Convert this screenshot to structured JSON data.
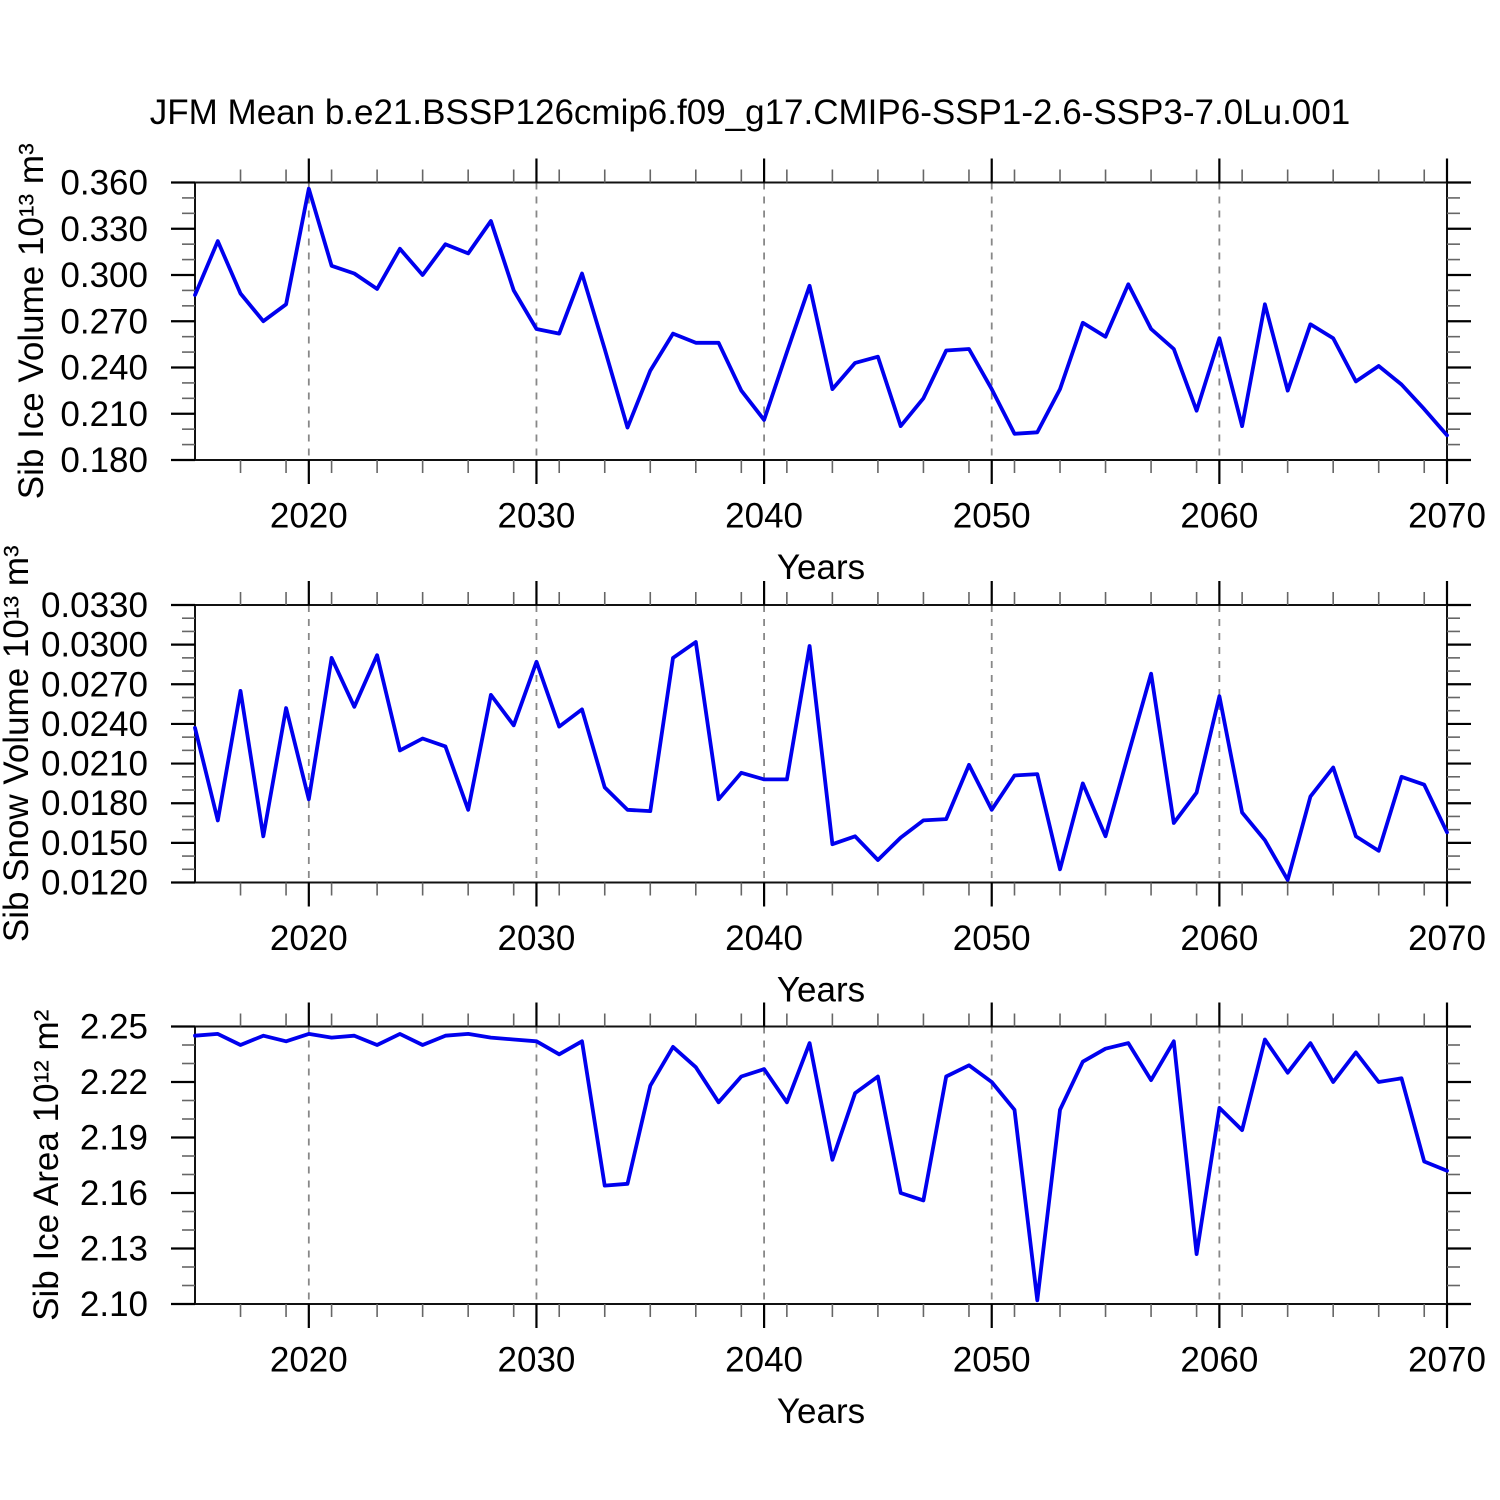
{
  "title": "JFM Mean b.e21.BSSP126cmip6.f09_g17.CMIP6-SSP1-2.6-SSP3-7.0Lu.001",
  "colors": {
    "line": "#0000ee",
    "grid": "#888888",
    "axis": "#111111",
    "major_tick": "#000000",
    "minor_tick": "#666666",
    "text": "#000000",
    "background": "#ffffff"
  },
  "chart_data": [
    {
      "type": "line",
      "name": "sib-ice-volume",
      "ylabel": "Sib Ice Volume 10¹³ m³",
      "xlabel": "Years",
      "xlim": [
        2015,
        2070
      ],
      "ylim": [
        0.18,
        0.36
      ],
      "xticks": [
        2020,
        2030,
        2040,
        2050,
        2060,
        2070
      ],
      "xtick_labels": [
        "2020",
        "2030",
        "2040",
        "2050",
        "2060",
        "2070"
      ],
      "yticks": [
        0.18,
        0.21,
        0.24,
        0.27,
        0.3,
        0.33,
        0.36
      ],
      "ytick_labels": [
        "0.180",
        "0.210",
        "0.240",
        "0.270",
        "0.300",
        "0.330",
        "0.360"
      ],
      "grid_x": [
        2020,
        2030,
        2040,
        2050,
        2060
      ],
      "minor_x_step": 2,
      "minor_y_step": 0.01,
      "x": [
        2015,
        2016,
        2017,
        2018,
        2019,
        2020,
        2021,
        2022,
        2023,
        2024,
        2025,
        2026,
        2027,
        2028,
        2029,
        2030,
        2031,
        2032,
        2033,
        2034,
        2035,
        2036,
        2037,
        2038,
        2039,
        2040,
        2041,
        2042,
        2043,
        2044,
        2045,
        2046,
        2047,
        2048,
        2049,
        2050,
        2051,
        2052,
        2053,
        2054,
        2055,
        2056,
        2057,
        2058,
        2059,
        2060,
        2061,
        2062,
        2063,
        2064,
        2065,
        2066,
        2067,
        2068,
        2069,
        2070
      ],
      "values": [
        0.287,
        0.322,
        0.288,
        0.27,
        0.281,
        0.356,
        0.306,
        0.301,
        0.291,
        0.317,
        0.3,
        0.32,
        0.314,
        0.335,
        0.29,
        0.265,
        0.262,
        0.301,
        0.252,
        0.201,
        0.238,
        0.262,
        0.256,
        0.256,
        0.225,
        0.206,
        0.25,
        0.293,
        0.226,
        0.243,
        0.247,
        0.202,
        0.22,
        0.251,
        0.252,
        0.226,
        0.197,
        0.198,
        0.226,
        0.269,
        0.26,
        0.294,
        0.265,
        0.252,
        0.212,
        0.259,
        0.202,
        0.281,
        0.225,
        0.268,
        0.259,
        0.231,
        0.241,
        0.229,
        0.213,
        0.196
      ]
    },
    {
      "type": "line",
      "name": "sib-snow-volume",
      "ylabel": "Sib Snow Volume 10¹³ m³",
      "xlabel": "Years",
      "xlim": [
        2015,
        2070
      ],
      "ylim": [
        0.012,
        0.033
      ],
      "xticks": [
        2020,
        2030,
        2040,
        2050,
        2060,
        2070
      ],
      "xtick_labels": [
        "2020",
        "2030",
        "2040",
        "2050",
        "2060",
        "2070"
      ],
      "yticks": [
        0.012,
        0.015,
        0.018,
        0.021,
        0.024,
        0.027,
        0.03,
        0.033
      ],
      "ytick_labels": [
        "0.0120",
        "0.0150",
        "0.0180",
        "0.0210",
        "0.0240",
        "0.0270",
        "0.0300",
        "0.0330"
      ],
      "grid_x": [
        2020,
        2030,
        2040,
        2050,
        2060
      ],
      "minor_x_step": 2,
      "minor_y_step": 0.001,
      "x": [
        2015,
        2016,
        2017,
        2018,
        2019,
        2020,
        2021,
        2022,
        2023,
        2024,
        2025,
        2026,
        2027,
        2028,
        2029,
        2030,
        2031,
        2032,
        2033,
        2034,
        2035,
        2036,
        2037,
        2038,
        2039,
        2040,
        2041,
        2042,
        2043,
        2044,
        2045,
        2046,
        2047,
        2048,
        2049,
        2050,
        2051,
        2052,
        2053,
        2054,
        2055,
        2056,
        2057,
        2058,
        2059,
        2060,
        2061,
        2062,
        2063,
        2064,
        2065,
        2066,
        2067,
        2068,
        2069,
        2070
      ],
      "values": [
        0.0237,
        0.0167,
        0.0265,
        0.0155,
        0.0252,
        0.0183,
        0.029,
        0.0253,
        0.0292,
        0.022,
        0.0229,
        0.0223,
        0.0175,
        0.0262,
        0.0239,
        0.0287,
        0.0238,
        0.0251,
        0.0192,
        0.0175,
        0.0174,
        0.029,
        0.0302,
        0.0183,
        0.0203,
        0.0198,
        0.0198,
        0.0299,
        0.0149,
        0.0155,
        0.0137,
        0.0154,
        0.0167,
        0.0168,
        0.0209,
        0.0175,
        0.0201,
        0.0202,
        0.013,
        0.0195,
        0.0155,
        0.0217,
        0.0278,
        0.0165,
        0.0188,
        0.0261,
        0.0173,
        0.0152,
        0.0122,
        0.0185,
        0.0207,
        0.0155,
        0.0144,
        0.02,
        0.0194,
        0.0158
      ]
    },
    {
      "type": "line",
      "name": "sib-ice-area",
      "ylabel": "Sib Ice Area 10¹² m²",
      "xlabel": "Years",
      "xlim": [
        2015,
        2070
      ],
      "ylim": [
        2.1,
        2.25
      ],
      "xticks": [
        2020,
        2030,
        2040,
        2050,
        2060,
        2070
      ],
      "xtick_labels": [
        "2020",
        "2030",
        "2040",
        "2050",
        "2060",
        "2070"
      ],
      "yticks": [
        2.1,
        2.13,
        2.16,
        2.19,
        2.22,
        2.25
      ],
      "ytick_labels": [
        "2.10",
        "2.13",
        "2.16",
        "2.19",
        "2.22",
        "2.25"
      ],
      "grid_x": [
        2020,
        2030,
        2040,
        2050,
        2060
      ],
      "minor_x_step": 2,
      "minor_y_step": 0.01,
      "x": [
        2015,
        2016,
        2017,
        2018,
        2019,
        2020,
        2021,
        2022,
        2023,
        2024,
        2025,
        2026,
        2027,
        2028,
        2029,
        2030,
        2031,
        2032,
        2033,
        2034,
        2035,
        2036,
        2037,
        2038,
        2039,
        2040,
        2041,
        2042,
        2043,
        2044,
        2045,
        2046,
        2047,
        2048,
        2049,
        2050,
        2051,
        2052,
        2053,
        2054,
        2055,
        2056,
        2057,
        2058,
        2059,
        2060,
        2061,
        2062,
        2063,
        2064,
        2065,
        2066,
        2067,
        2068,
        2069,
        2070
      ],
      "values": [
        2.245,
        2.246,
        2.24,
        2.245,
        2.242,
        2.246,
        2.244,
        2.245,
        2.24,
        2.246,
        2.24,
        2.245,
        2.246,
        2.244,
        2.243,
        2.242,
        2.235,
        2.242,
        2.164,
        2.165,
        2.218,
        2.239,
        2.228,
        2.209,
        2.223,
        2.227,
        2.209,
        2.241,
        2.178,
        2.214,
        2.223,
        2.16,
        2.156,
        2.223,
        2.229,
        2.22,
        2.205,
        2.102,
        2.205,
        2.231,
        2.238,
        2.241,
        2.221,
        2.242,
        2.127,
        2.206,
        2.194,
        2.243,
        2.225,
        2.241,
        2.22,
        2.236,
        2.22,
        2.222,
        2.177,
        2.172
      ]
    }
  ]
}
